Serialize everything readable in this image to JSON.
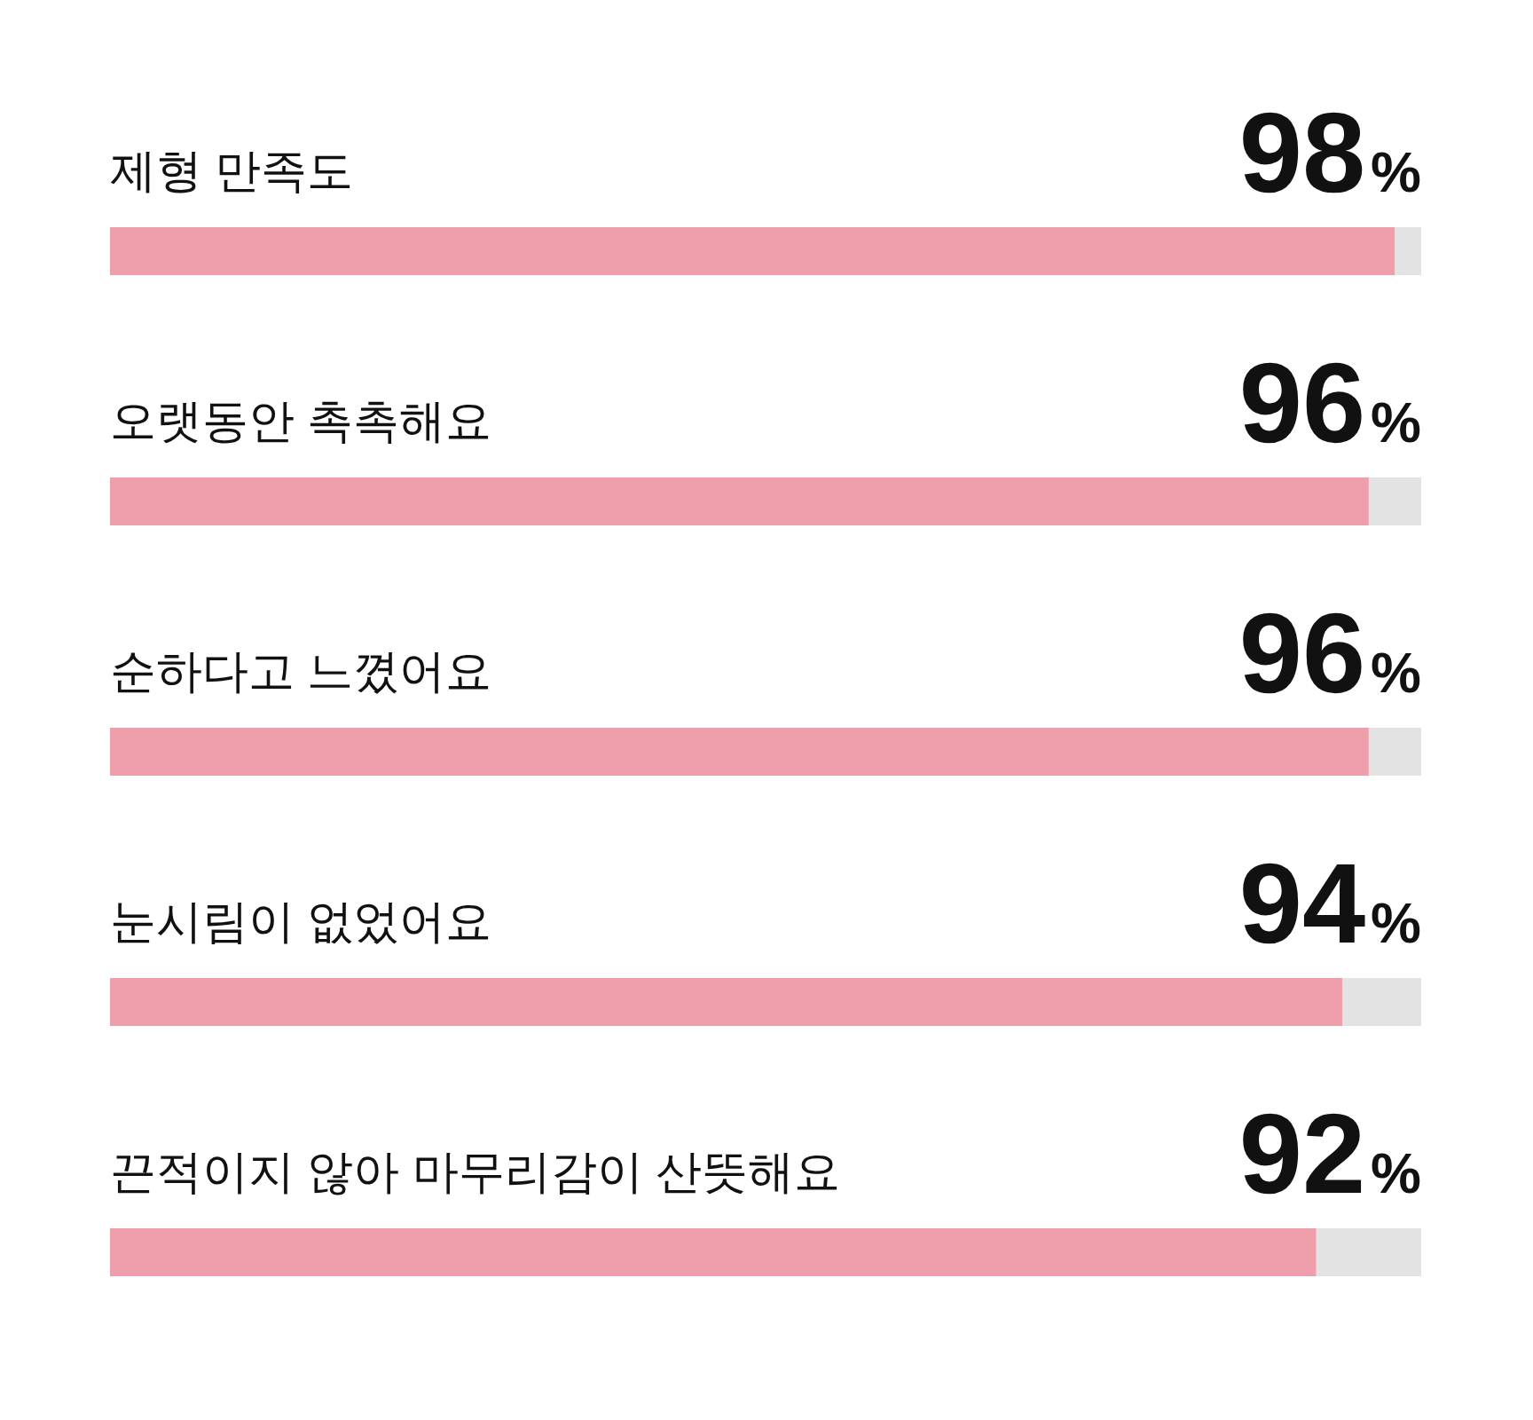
{
  "chart_data": {
    "type": "bar",
    "orientation": "horizontal",
    "stacked": true,
    "categories": [
      "제형 만족도",
      "오랫동안 촉촉해요",
      "순하다고 느꼈어요",
      "눈시림이 없었어요",
      "끈적이지 않아 마무리감이 산뜻해요"
    ],
    "xlim": [
      0,
      100
    ],
    "series": [
      {
        "color": "#ee9fab",
        "values": [
          98,
          96,
          96,
          94,
          92
        ],
        "value_labels": [
          "98%",
          "96%",
          "96%",
          "94%",
          "92%"
        ]
      },
      {
        "color": "#e3e3e3",
        "values": [
          2,
          4,
          4,
          6,
          8
        ]
      }
    ]
  }
}
